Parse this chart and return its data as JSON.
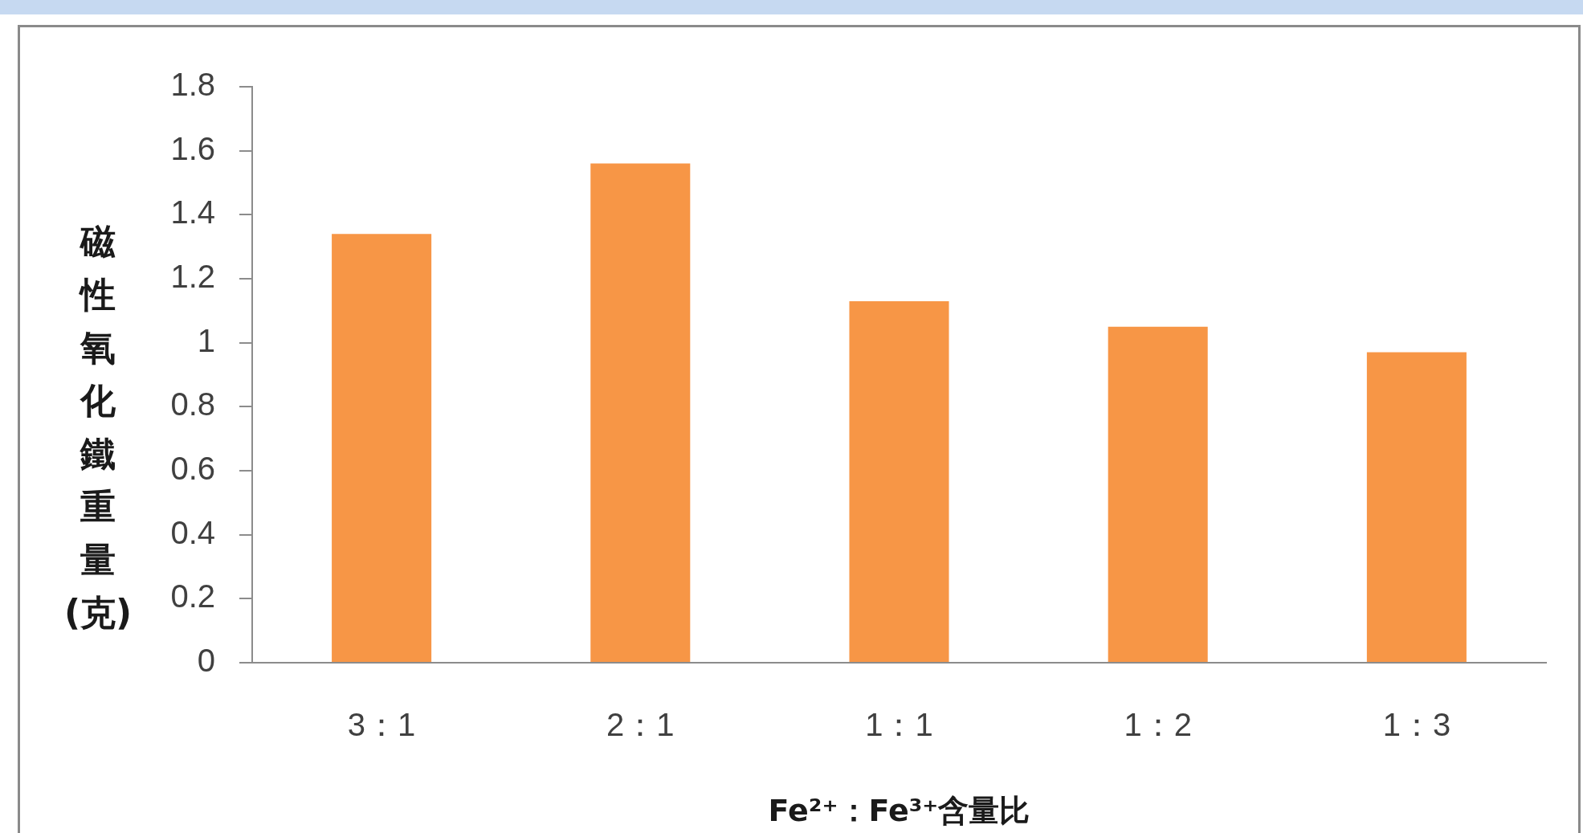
{
  "chart_data": {
    "type": "bar",
    "xlabel": "Fe²⁺：Fe³⁺含量比",
    "ylabel": "磁性氧化鐵重量(克)",
    "categories": [
      "3：1",
      "2：1",
      "1：1",
      "1：2",
      "1：3"
    ],
    "values": [
      1.34,
      1.56,
      1.13,
      1.05,
      0.97
    ],
    "color": "#f79646",
    "ylim": [
      0,
      1.8
    ],
    "yticks": [
      0,
      0.2,
      0.4,
      0.6,
      0.8,
      1,
      1.2,
      1.4,
      1.6,
      1.8
    ],
    "grid": false,
    "legend": false
  }
}
